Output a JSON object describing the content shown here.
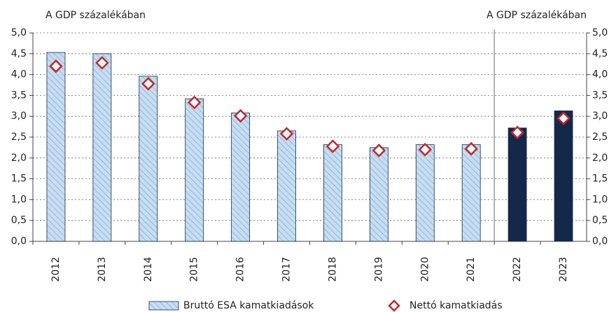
{
  "chart_data": {
    "type": "bar",
    "ylabel": "A GDP százalékában",
    "y2label": "A GDP százalékában",
    "categories": [
      "2012",
      "2013",
      "2014",
      "2015",
      "2016",
      "2017",
      "2018",
      "2019",
      "2020",
      "2021",
      "2022",
      "2023"
    ],
    "series": [
      {
        "name": "Bruttó ESA kamatkiadások",
        "type": "bar",
        "color": "#c6ddf2",
        "hatch": true,
        "colors": [
          "#c6ddf2",
          "#c6ddf2",
          "#c6ddf2",
          "#c6ddf2",
          "#c6ddf2",
          "#c6ddf2",
          "#c6ddf2",
          "#c6ddf2",
          "#c6ddf2",
          "#c6ddf2",
          "#14284b",
          "#14284b"
        ],
        "values": [
          4.53,
          4.5,
          3.96,
          3.42,
          3.08,
          2.65,
          2.32,
          2.25,
          2.32,
          2.32,
          2.72,
          3.13
        ]
      },
      {
        "name": "Nettó kamatkiadás",
        "type": "scatter",
        "color": "#c0282d",
        "values": [
          4.2,
          4.28,
          3.78,
          3.33,
          3.01,
          2.58,
          2.28,
          2.18,
          2.2,
          2.22,
          2.61,
          2.95
        ]
      }
    ],
    "ylim": [
      0,
      5
    ],
    "y2lim": [
      0,
      5
    ],
    "yticks": [
      {
        "value": 0,
        "label": "0,0"
      },
      {
        "value": 0.5,
        "label": "0,5"
      },
      {
        "value": 1,
        "label": "1,0"
      },
      {
        "value": 1.5,
        "label": "1,5"
      },
      {
        "value": 2,
        "label": "2,0"
      },
      {
        "value": 2.5,
        "label": "2,5"
      },
      {
        "value": 3,
        "label": "3,0"
      },
      {
        "value": 3.5,
        "label": "3,5"
      },
      {
        "value": 4,
        "label": "4,0"
      },
      {
        "value": 4.5,
        "label": "4,5"
      },
      {
        "value": 5,
        "label": "5,0"
      }
    ],
    "y2ticks": [
      {
        "value": 0,
        "label": "0,0"
      },
      {
        "value": 0.5,
        "label": "0,5"
      },
      {
        "value": 1,
        "label": "1,0"
      },
      {
        "value": 1.5,
        "label": "1,5"
      },
      {
        "value": 2,
        "label": "2,0"
      },
      {
        "value": 2.5,
        "label": "2,5"
      },
      {
        "value": 3,
        "label": "3,0"
      },
      {
        "value": 3.5,
        "label": "3,5"
      },
      {
        "value": 4,
        "label": "4,0"
      },
      {
        "value": 4.5,
        "label": "4,5"
      },
      {
        "value": 5,
        "label": "5,0"
      }
    ],
    "grid": true,
    "legend": "bottom"
  }
}
